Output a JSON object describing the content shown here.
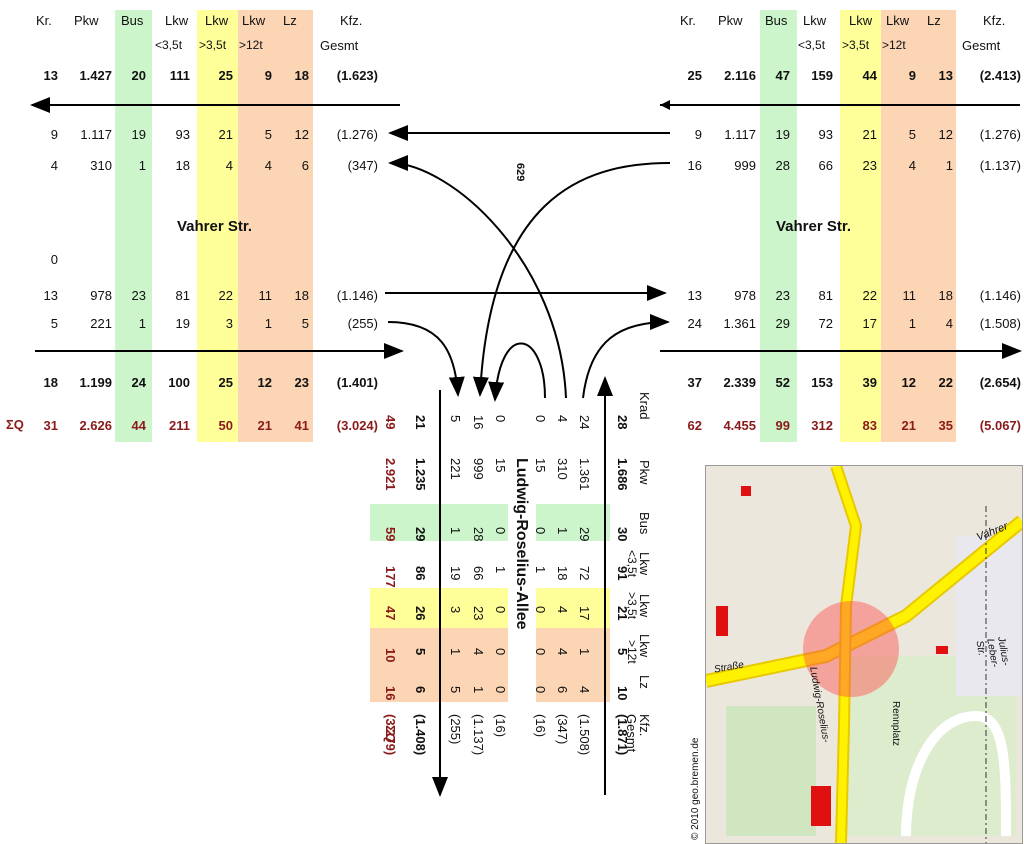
{
  "colors": {
    "bus": "#ccf5cc",
    "lkw35": "#ffff99",
    "lkw12": "#fcd5b4",
    "lz": "#fcd5b4",
    "sumred": "#8b1a1a"
  },
  "headers": {
    "kr": "Kr.",
    "pkw": "Pkw",
    "bus": "Bus",
    "lkw": "Lkw",
    "lkw2": "Lkw",
    "lkw3": "Lkw",
    "lz": "Lz",
    "kfz": "Kfz.",
    "sub35a": "<3,5t",
    "sub35b": ">3,5t",
    "sub12": ">12t",
    "gesmt": "Gesmt",
    "krad": "Krad"
  },
  "streets": {
    "vahrer_left": "Vahrer Str.",
    "vahrer_right": "Vahrer Str.",
    "ludwig": "Ludwig-Roselius-Allee"
  },
  "sigma": "ΣQ",
  "rotated_label": "629",
  "copyright": "© 2010 geo.bremen.de",
  "left": {
    "total_top": [
      "13",
      "1.427",
      "20",
      "111",
      "25",
      "9",
      "18",
      "(1.623)"
    ],
    "r1": [
      "9",
      "1.117",
      "19",
      "93",
      "21",
      "5",
      "12",
      "(1.276)"
    ],
    "r2": [
      "4",
      "310",
      "1",
      "18",
      "4",
      "4",
      "6",
      "(347)"
    ],
    "zero": "0",
    "r3": [
      "13",
      "978",
      "23",
      "81",
      "22",
      "11",
      "18",
      "(1.146)"
    ],
    "r4": [
      "5",
      "221",
      "1",
      "19",
      "3",
      "1",
      "5",
      "(255)"
    ],
    "total_bottom": [
      "18",
      "1.199",
      "24",
      "100",
      "25",
      "12",
      "23",
      "(1.401)"
    ],
    "sum": [
      "31",
      "2.626",
      "44",
      "211",
      "50",
      "21",
      "41",
      "(3.024)"
    ]
  },
  "right": {
    "total_top": [
      "25",
      "2.116",
      "47",
      "159",
      "44",
      "9",
      "13",
      "(2.413)"
    ],
    "r1": [
      "9",
      "1.117",
      "19",
      "93",
      "21",
      "5",
      "12",
      "(1.276)"
    ],
    "r2": [
      "16",
      "999",
      "28",
      "66",
      "23",
      "4",
      "1",
      "(1.137)"
    ],
    "r3": [
      "13",
      "978",
      "23",
      "81",
      "22",
      "11",
      "18",
      "(1.146)"
    ],
    "r4": [
      "24",
      "1.361",
      "29",
      "72",
      "17",
      "1",
      "4",
      "(1.508)"
    ],
    "total_bottom": [
      "37",
      "2.339",
      "52",
      "153",
      "39",
      "12",
      "22",
      "(2.654)"
    ],
    "sum": [
      "62",
      "4.455",
      "99",
      "312",
      "83",
      "21",
      "35",
      "(5.067)"
    ]
  },
  "south": {
    "sum": [
      "49",
      "2.921",
      "59",
      "177",
      "47",
      "10",
      "16",
      "(3.279)"
    ],
    "total_in": [
      "21",
      "1.235",
      "29",
      "86",
      "26",
      "5",
      "6",
      "(1.408)"
    ],
    "c1": [
      "5",
      "221",
      "1",
      "19",
      "3",
      "1",
      "5",
      "(255)"
    ],
    "c2": [
      "16",
      "999",
      "28",
      "66",
      "23",
      "4",
      "1",
      "(1.137)"
    ],
    "c3": [
      "0",
      "15",
      "0",
      "1",
      "0",
      "0",
      "0",
      "(16)"
    ],
    "c4": [
      "0",
      "15",
      "0",
      "1",
      "0",
      "0",
      "0",
      "(16)"
    ],
    "c5": [
      "4",
      "310",
      "1",
      "18",
      "4",
      "4",
      "6",
      "(347)"
    ],
    "c6": [
      "24",
      "1.361",
      "29",
      "72",
      "17",
      "1",
      "4",
      "(1.508)"
    ],
    "total_out": [
      "28",
      "1.686",
      "30",
      "91",
      "21",
      "5",
      "10",
      "(1.871)"
    ]
  },
  "map_labels": {
    "vahrer": "Vahrer",
    "strasse": "Straße",
    "ludwig": "Ludwig-Roselius-",
    "rennplatz": "Rennplatz",
    "julius": "Julius-Leber-Str."
  }
}
